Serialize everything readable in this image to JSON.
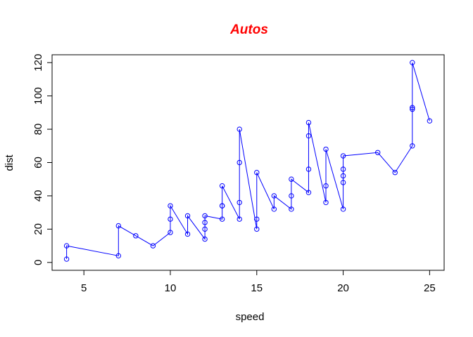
{
  "chart_data": {
    "type": "line",
    "title": "Autos",
    "xlabel": "speed",
    "ylabel": "dist",
    "xlim": [
      3.16,
      25.84
    ],
    "ylim": [
      -4.72,
      124.72
    ],
    "xticks": [
      5,
      10,
      15,
      20,
      25
    ],
    "yticks": [
      0,
      20,
      40,
      60,
      80,
      100,
      120
    ],
    "grid": false,
    "colors": {
      "title": "#ff0000",
      "series": "#0000ff",
      "axes": "#000000"
    },
    "series": [
      {
        "x": [
          4,
          4,
          7,
          7,
          8,
          9,
          10,
          10,
          10,
          11,
          11,
          12,
          12,
          12,
          12,
          13,
          13,
          13,
          13,
          14,
          14,
          14,
          14,
          15,
          15,
          15,
          16,
          16,
          17,
          17,
          17,
          18,
          18,
          18,
          18,
          19,
          19,
          19,
          20,
          20,
          20,
          20,
          20,
          22,
          23,
          24,
          24,
          24,
          24,
          25
        ],
        "values": [
          2,
          10,
          4,
          22,
          16,
          10,
          18,
          26,
          34,
          17,
          28,
          14,
          20,
          24,
          28,
          26,
          34,
          34,
          46,
          26,
          36,
          60,
          80,
          20,
          26,
          54,
          32,
          40,
          32,
          40,
          50,
          42,
          56,
          76,
          84,
          36,
          46,
          68,
          32,
          48,
          52,
          56,
          64,
          66,
          54,
          70,
          92,
          93,
          120,
          85
        ]
      }
    ]
  }
}
